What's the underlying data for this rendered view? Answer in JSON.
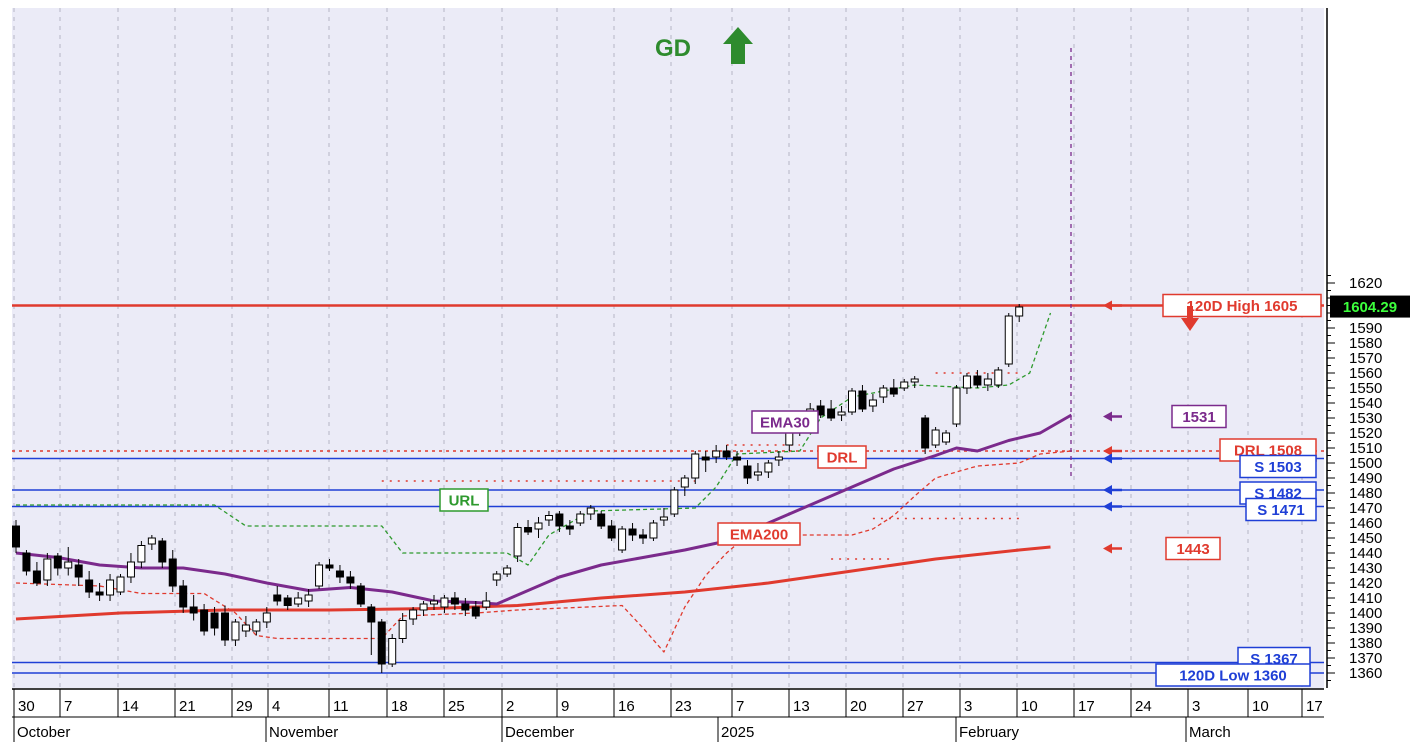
{
  "chart_data": {
    "type": "candlestick",
    "title": "",
    "xlabel": "",
    "ylabel": "",
    "ylim": [
      1354,
      1626
    ],
    "y_ticks": [
      1360,
      1370,
      1380,
      1390,
      1400,
      1410,
      1420,
      1430,
      1440,
      1450,
      1460,
      1470,
      1480,
      1490,
      1500,
      1510,
      1520,
      1530,
      1540,
      1550,
      1560,
      1570,
      1580,
      1590,
      1600,
      1610,
      1620
    ],
    "grid": true,
    "grid_style": "dotted vertical",
    "x_day_ticks": [
      "30",
      "7",
      "14",
      "21",
      "29",
      "4",
      "11",
      "18",
      "25",
      "2",
      "9",
      "16",
      "23",
      "7",
      "13",
      "20",
      "27",
      "3",
      "10",
      "17",
      "24",
      "3",
      "10",
      "17"
    ],
    "x_month_labels": [
      "October",
      "November",
      "December",
      "2025",
      "February",
      "March"
    ],
    "current_price": "1604.29",
    "gd_signal": {
      "text": "GD",
      "direction": "up",
      "color": "#2e8b2e"
    },
    "hlines": [
      {
        "label": "120D High 1605",
        "value": 1605,
        "color": "#e03a2e",
        "style": "solid"
      },
      {
        "label": "DRL 1508",
        "value": 1508,
        "color": "#e03a2e",
        "style": "dotted"
      },
      {
        "label": "S 1503",
        "value": 1503,
        "color": "#1f3fd6",
        "style": "solid"
      },
      {
        "label": "S 1482",
        "value": 1482,
        "color": "#1f3fd6",
        "style": "solid"
      },
      {
        "label": "S 1471",
        "value": 1471,
        "color": "#1f3fd6",
        "style": "solid"
      },
      {
        "label": "S 1367",
        "value": 1367,
        "color": "#1f3fd6",
        "style": "solid"
      },
      {
        "label": "120D Low 1360",
        "value": 1360,
        "color": "#1f3fd6",
        "style": "solid"
      }
    ],
    "value_tags": [
      {
        "label": "1531",
        "value": 1531,
        "color": "#7b2a8c"
      },
      {
        "label": "1443",
        "value": 1443,
        "color": "#e03a2e"
      }
    ],
    "series_labels": [
      {
        "text": "URL",
        "color": "#2e9a2e"
      },
      {
        "text": "EMA30",
        "color": "#7b2a8c"
      },
      {
        "text": "DRL",
        "color": "#e03a2e"
      },
      {
        "text": "EMA200",
        "color": "#e03a2e"
      }
    ],
    "colors": {
      "ema30": "#7b2a8c",
      "ema200": "#e03a2e",
      "url": "#2e9a2e",
      "drl": "#e03a2e",
      "support": "#1f3fd6",
      "bg": "#ebebf7"
    },
    "candles": [
      {
        "o": 1458,
        "h": 1462,
        "l": 1440,
        "c": 1444
      },
      {
        "o": 1440,
        "h": 1442,
        "l": 1425,
        "c": 1428
      },
      {
        "o": 1428,
        "h": 1434,
        "l": 1418,
        "c": 1420
      },
      {
        "o": 1422,
        "h": 1440,
        "l": 1418,
        "c": 1436
      },
      {
        "o": 1438,
        "h": 1440,
        "l": 1425,
        "c": 1430
      },
      {
        "o": 1430,
        "h": 1444,
        "l": 1425,
        "c": 1434
      },
      {
        "o": 1432,
        "h": 1436,
        "l": 1418,
        "c": 1424
      },
      {
        "o": 1422,
        "h": 1428,
        "l": 1410,
        "c": 1414
      },
      {
        "o": 1414,
        "h": 1420,
        "l": 1408,
        "c": 1412
      },
      {
        "o": 1412,
        "h": 1426,
        "l": 1408,
        "c": 1422
      },
      {
        "o": 1414,
        "h": 1426,
        "l": 1412,
        "c": 1424
      },
      {
        "o": 1424,
        "h": 1440,
        "l": 1420,
        "c": 1434
      },
      {
        "o": 1434,
        "h": 1448,
        "l": 1430,
        "c": 1445
      },
      {
        "o": 1446,
        "h": 1452,
        "l": 1442,
        "c": 1450
      },
      {
        "o": 1448,
        "h": 1450,
        "l": 1430,
        "c": 1434
      },
      {
        "o": 1436,
        "h": 1442,
        "l": 1414,
        "c": 1418
      },
      {
        "o": 1418,
        "h": 1422,
        "l": 1400,
        "c": 1404
      },
      {
        "o": 1404,
        "h": 1412,
        "l": 1395,
        "c": 1400
      },
      {
        "o": 1402,
        "h": 1406,
        "l": 1385,
        "c": 1388
      },
      {
        "o": 1400,
        "h": 1404,
        "l": 1385,
        "c": 1390
      },
      {
        "o": 1400,
        "h": 1405,
        "l": 1378,
        "c": 1382
      },
      {
        "o": 1382,
        "h": 1396,
        "l": 1378,
        "c": 1394
      },
      {
        "o": 1388,
        "h": 1398,
        "l": 1384,
        "c": 1392
      },
      {
        "o": 1388,
        "h": 1396,
        "l": 1385,
        "c": 1394
      },
      {
        "o": 1394,
        "h": 1404,
        "l": 1390,
        "c": 1400
      },
      {
        "o": 1412,
        "h": 1418,
        "l": 1405,
        "c": 1408
      },
      {
        "o": 1410,
        "h": 1412,
        "l": 1402,
        "c": 1405
      },
      {
        "o": 1406,
        "h": 1414,
        "l": 1404,
        "c": 1410
      },
      {
        "o": 1408,
        "h": 1416,
        "l": 1404,
        "c": 1412
      },
      {
        "o": 1418,
        "h": 1434,
        "l": 1416,
        "c": 1432
      },
      {
        "o": 1432,
        "h": 1436,
        "l": 1428,
        "c": 1430
      },
      {
        "o": 1428,
        "h": 1432,
        "l": 1420,
        "c": 1424
      },
      {
        "o": 1424,
        "h": 1428,
        "l": 1416,
        "c": 1420
      },
      {
        "o": 1418,
        "h": 1420,
        "l": 1404,
        "c": 1406
      },
      {
        "o": 1404,
        "h": 1406,
        "l": 1372,
        "c": 1394
      },
      {
        "o": 1394,
        "h": 1396,
        "l": 1360,
        "c": 1366
      },
      {
        "o": 1366,
        "h": 1386,
        "l": 1364,
        "c": 1383
      },
      {
        "o": 1383,
        "h": 1400,
        "l": 1380,
        "c": 1395
      },
      {
        "o": 1396,
        "h": 1404,
        "l": 1392,
        "c": 1402
      },
      {
        "o": 1402,
        "h": 1408,
        "l": 1398,
        "c": 1406
      },
      {
        "o": 1406,
        "h": 1412,
        "l": 1402,
        "c": 1408
      },
      {
        "o": 1404,
        "h": 1412,
        "l": 1400,
        "c": 1410
      },
      {
        "o": 1410,
        "h": 1414,
        "l": 1402,
        "c": 1406
      },
      {
        "o": 1406,
        "h": 1410,
        "l": 1398,
        "c": 1402
      },
      {
        "o": 1404,
        "h": 1408,
        "l": 1396,
        "c": 1398
      },
      {
        "o": 1404,
        "h": 1414,
        "l": 1402,
        "c": 1408
      },
      {
        "o": 1422,
        "h": 1428,
        "l": 1418,
        "c": 1426
      },
      {
        "o": 1426,
        "h": 1432,
        "l": 1424,
        "c": 1430
      },
      {
        "o": 1438,
        "h": 1460,
        "l": 1434,
        "c": 1457
      },
      {
        "o": 1457,
        "h": 1462,
        "l": 1452,
        "c": 1454
      },
      {
        "o": 1456,
        "h": 1464,
        "l": 1450,
        "c": 1460
      },
      {
        "o": 1462,
        "h": 1468,
        "l": 1458,
        "c": 1465
      },
      {
        "o": 1466,
        "h": 1468,
        "l": 1454,
        "c": 1458
      },
      {
        "o": 1458,
        "h": 1462,
        "l": 1452,
        "c": 1456
      },
      {
        "o": 1460,
        "h": 1468,
        "l": 1458,
        "c": 1466
      },
      {
        "o": 1466,
        "h": 1472,
        "l": 1462,
        "c": 1470
      },
      {
        "o": 1466,
        "h": 1468,
        "l": 1456,
        "c": 1458
      },
      {
        "o": 1458,
        "h": 1462,
        "l": 1448,
        "c": 1450
      },
      {
        "o": 1442,
        "h": 1458,
        "l": 1440,
        "c": 1456
      },
      {
        "o": 1456,
        "h": 1460,
        "l": 1448,
        "c": 1452
      },
      {
        "o": 1452,
        "h": 1456,
        "l": 1446,
        "c": 1450
      },
      {
        "o": 1450,
        "h": 1462,
        "l": 1448,
        "c": 1460
      },
      {
        "o": 1462,
        "h": 1470,
        "l": 1458,
        "c": 1464
      },
      {
        "o": 1466,
        "h": 1484,
        "l": 1464,
        "c": 1482
      },
      {
        "o": 1484,
        "h": 1492,
        "l": 1478,
        "c": 1490
      },
      {
        "o": 1490,
        "h": 1508,
        "l": 1486,
        "c": 1506
      },
      {
        "o": 1504,
        "h": 1508,
        "l": 1494,
        "c": 1502
      },
      {
        "o": 1504,
        "h": 1512,
        "l": 1500,
        "c": 1508
      },
      {
        "o": 1508,
        "h": 1512,
        "l": 1502,
        "c": 1504
      },
      {
        "o": 1504,
        "h": 1508,
        "l": 1498,
        "c": 1502
      },
      {
        "o": 1498,
        "h": 1502,
        "l": 1486,
        "c": 1490
      },
      {
        "o": 1492,
        "h": 1500,
        "l": 1488,
        "c": 1494
      },
      {
        "o": 1494,
        "h": 1502,
        "l": 1490,
        "c": 1500
      },
      {
        "o": 1502,
        "h": 1508,
        "l": 1498,
        "c": 1504
      },
      {
        "o": 1512,
        "h": 1522,
        "l": 1508,
        "c": 1520
      },
      {
        "o": 1520,
        "h": 1530,
        "l": 1518,
        "c": 1528
      },
      {
        "o": 1530,
        "h": 1540,
        "l": 1528,
        "c": 1536
      },
      {
        "o": 1538,
        "h": 1542,
        "l": 1530,
        "c": 1532
      },
      {
        "o": 1536,
        "h": 1542,
        "l": 1528,
        "c": 1530
      },
      {
        "o": 1532,
        "h": 1538,
        "l": 1528,
        "c": 1534
      },
      {
        "o": 1534,
        "h": 1550,
        "l": 1532,
        "c": 1548
      },
      {
        "o": 1548,
        "h": 1552,
        "l": 1534,
        "c": 1536
      },
      {
        "o": 1538,
        "h": 1546,
        "l": 1534,
        "c": 1542
      },
      {
        "o": 1544,
        "h": 1552,
        "l": 1540,
        "c": 1550
      },
      {
        "o": 1550,
        "h": 1556,
        "l": 1544,
        "c": 1546
      },
      {
        "o": 1550,
        "h": 1556,
        "l": 1548,
        "c": 1554
      },
      {
        "o": 1554,
        "h": 1558,
        "l": 1550,
        "c": 1556
      },
      {
        "o": 1530,
        "h": 1532,
        "l": 1506,
        "c": 1510
      },
      {
        "o": 1512,
        "h": 1524,
        "l": 1510,
        "c": 1522
      },
      {
        "o": 1514,
        "h": 1522,
        "l": 1512,
        "c": 1520
      },
      {
        "o": 1526,
        "h": 1552,
        "l": 1524,
        "c": 1550
      },
      {
        "o": 1550,
        "h": 1560,
        "l": 1546,
        "c": 1558
      },
      {
        "o": 1558,
        "h": 1562,
        "l": 1550,
        "c": 1552
      },
      {
        "o": 1552,
        "h": 1560,
        "l": 1548,
        "c": 1556
      },
      {
        "o": 1552,
        "h": 1564,
        "l": 1550,
        "c": 1562
      },
      {
        "o": 1566,
        "h": 1600,
        "l": 1564,
        "c": 1598
      },
      {
        "o": 1598,
        "h": 1606,
        "l": 1594,
        "c": 1604
      }
    ],
    "ema30": [
      [
        0,
        1440
      ],
      [
        4,
        1437
      ],
      [
        8,
        1432
      ],
      [
        12,
        1430
      ],
      [
        16,
        1430
      ],
      [
        20,
        1426
      ],
      [
        24,
        1420
      ],
      [
        28,
        1415
      ],
      [
        32,
        1417
      ],
      [
        36,
        1414
      ],
      [
        40,
        1408
      ],
      [
        44,
        1407
      ],
      [
        46,
        1406
      ],
      [
        48,
        1412
      ],
      [
        52,
        1424
      ],
      [
        56,
        1432
      ],
      [
        60,
        1437
      ],
      [
        64,
        1442
      ],
      [
        68,
        1448
      ],
      [
        72,
        1460
      ],
      [
        76,
        1472
      ],
      [
        80,
        1484
      ],
      [
        84,
        1496
      ],
      [
        88,
        1505
      ],
      [
        90,
        1510
      ],
      [
        92,
        1508
      ],
      [
        95,
        1515
      ],
      [
        98,
        1520
      ],
      [
        101,
        1532
      ]
    ],
    "ema200": [
      [
        0,
        1396
      ],
      [
        10,
        1400
      ],
      [
        20,
        1402
      ],
      [
        30,
        1402
      ],
      [
        40,
        1403
      ],
      [
        48,
        1405
      ],
      [
        56,
        1410
      ],
      [
        64,
        1414
      ],
      [
        72,
        1420
      ],
      [
        80,
        1428
      ],
      [
        88,
        1436
      ],
      [
        96,
        1442
      ],
      [
        99,
        1444
      ]
    ],
    "url": [
      [
        0,
        1472
      ],
      [
        19,
        1472
      ],
      [
        22,
        1458
      ],
      [
        35,
        1458
      ],
      [
        37,
        1440
      ],
      [
        47,
        1440
      ],
      [
        49,
        1432
      ],
      [
        51,
        1452
      ],
      [
        55,
        1468
      ],
      [
        65,
        1470
      ],
      [
        67,
        1484
      ],
      [
        69,
        1506
      ],
      [
        75,
        1508
      ],
      [
        77,
        1530
      ],
      [
        80,
        1544
      ],
      [
        86,
        1552
      ],
      [
        92,
        1550
      ],
      [
        95,
        1552
      ],
      [
        97,
        1560
      ],
      [
        99,
        1600
      ]
    ],
    "drl": [
      [
        0,
        1420
      ],
      [
        8,
        1418
      ],
      [
        12,
        1413
      ],
      [
        18,
        1413
      ],
      [
        21,
        1400
      ],
      [
        23,
        1385
      ],
      [
        25,
        1383
      ],
      [
        35,
        1383
      ],
      [
        37,
        1398
      ],
      [
        44,
        1400
      ],
      [
        48,
        1402
      ],
      [
        58,
        1405
      ],
      [
        60,
        1390
      ],
      [
        62,
        1374
      ],
      [
        64,
        1404
      ],
      [
        66,
        1425
      ],
      [
        68,
        1440
      ],
      [
        70,
        1452
      ],
      [
        80,
        1452
      ],
      [
        82,
        1456
      ],
      [
        84,
        1465
      ],
      [
        86,
        1478
      ],
      [
        88,
        1490
      ],
      [
        90,
        1494
      ],
      [
        92,
        1498
      ],
      [
        96,
        1500
      ],
      [
        98,
        1506
      ],
      [
        101,
        1508
      ]
    ],
    "dotted_levels": [
      {
        "from": 35,
        "to": 65,
        "value": 1488
      },
      {
        "from": 68,
        "to": 75,
        "value": 1512
      },
      {
        "from": 88,
        "to": 96,
        "value": 1560
      },
      {
        "from": 82,
        "to": 96,
        "value": 1463
      },
      {
        "from": 78,
        "to": 84,
        "value": 1436
      }
    ]
  }
}
